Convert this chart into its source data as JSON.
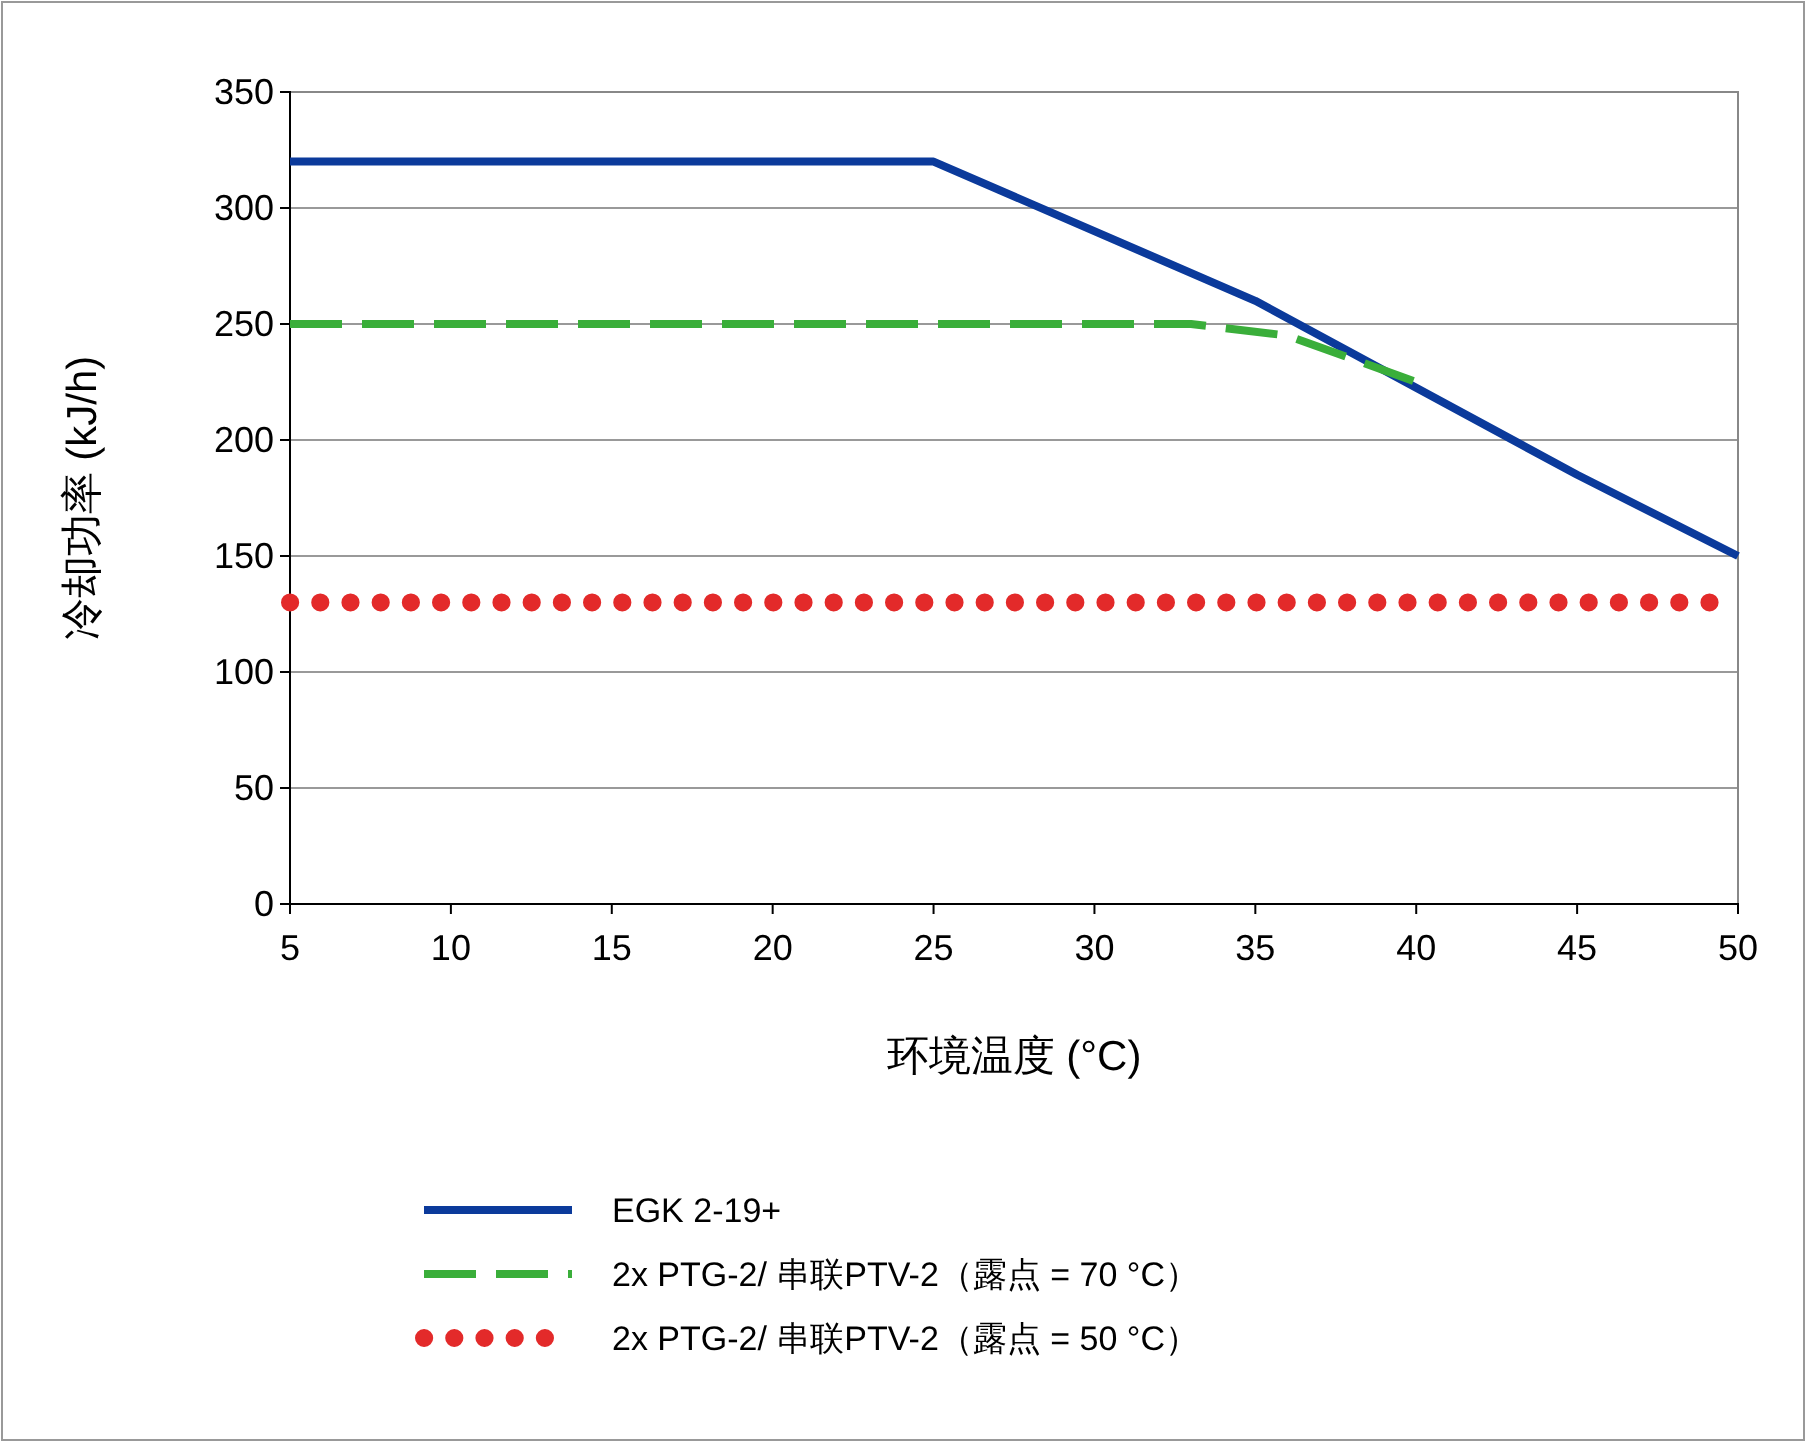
{
  "chart_data": {
    "type": "line",
    "xlabel": "环境温度 (°C)",
    "ylabel": "冷却功率 (kJ/h)",
    "xlim": [
      5,
      50
    ],
    "xticks": [
      5,
      10,
      15,
      20,
      25,
      30,
      35,
      40,
      45,
      50
    ],
    "ylim": [
      0,
      350
    ],
    "yticks": [
      0,
      50,
      100,
      150,
      200,
      250,
      300,
      350
    ],
    "grid": "y",
    "legend": "bottom",
    "series": [
      {
        "name": "EGK 2-19+",
        "color": "#0b3a9b",
        "line_style": "solid",
        "x": [
          5,
          25,
          35,
          45,
          50
        ],
        "values": [
          320,
          320,
          260,
          185,
          150
        ]
      },
      {
        "name": "2x PTG-2/ 串联PTV-2（露点 = 70 °C）",
        "color": "#3aae3a",
        "line_style": "dashed",
        "x": [
          5,
          33,
          36,
          40
        ],
        "values": [
          250,
          250,
          245,
          225
        ]
      },
      {
        "name": "2x PTG-2/ 串联PTV-2（露点 = 50 °C）",
        "color": "#e32a2a",
        "line_style": "dotted",
        "x": [
          5,
          50
        ],
        "values": [
          130,
          130
        ]
      }
    ]
  }
}
